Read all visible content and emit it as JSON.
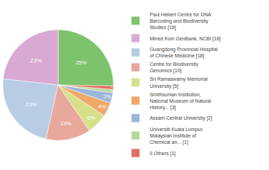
{
  "chart_data": {
    "type": "pie",
    "categories": [
      "Paul Hebert Centre for DNA\nBarcoding and Biodiversity\nStudies [19]",
      "Mined from GenBank, NCBI [18]",
      "Guangdong Provincial Hospital\nof Chinese Medicine [18]",
      "Centre for Biodiversity\nGenomics [10]",
      "Sri Ramaswamy Memorial\nUniversity [5]",
      "Smithsonian Institution,\nNational Museum of Natural\nHistory... [3]",
      "Assam Central University [2]",
      "Universiti Kuala Lumpur,\nMalaysian Institute of\nChemical an... [1]",
      "0 Others [1]"
    ],
    "values": [
      25,
      23,
      23,
      13,
      6,
      4,
      3,
      1,
      1
    ],
    "value_labels": [
      "25%",
      "23%",
      "23%",
      "13%",
      "6%",
      "4%",
      "3%",
      "1%",
      "1%"
    ],
    "colors": [
      "#7dc36b",
      "#d9a9d3",
      "#b8cce4",
      "#e8a89c",
      "#d6e08a",
      "#f0a868",
      "#9ab7d8",
      "#b8d89a",
      "#e07060"
    ],
    "data_labels": true,
    "legend": "right"
  }
}
